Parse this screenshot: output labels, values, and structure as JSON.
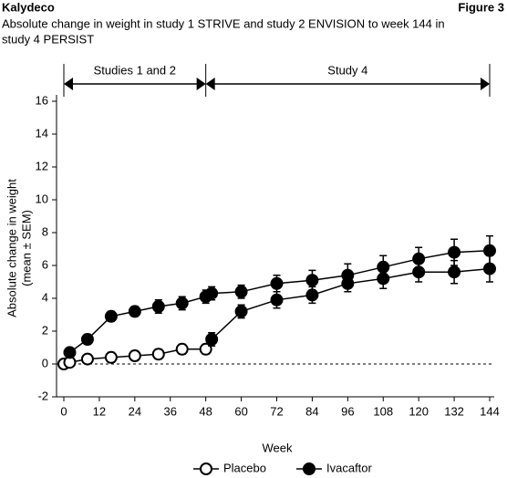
{
  "header": {
    "left": "Kalydeco",
    "right": "Figure 3"
  },
  "chart_data": {
    "type": "line",
    "title": [
      "Absolute change in weight in study 1 STRIVE and study 2 ENVISION to week 144 in",
      "study 4 PERSIST"
    ],
    "xlabel": "Week",
    "ylabel": [
      "Absolute change in weight",
      "(mean ± SEM)"
    ],
    "xlim": [
      0,
      144
    ],
    "ylim": [
      -2,
      16
    ],
    "xticks": [
      0,
      12,
      24,
      36,
      48,
      60,
      72,
      84,
      96,
      108,
      120,
      132,
      144
    ],
    "yticks": [
      -2,
      0,
      2,
      4,
      6,
      8,
      10,
      12,
      14,
      16
    ],
    "reference_line": 0,
    "periods": [
      {
        "label": "Studies 1 and 2",
        "start": 0,
        "end": 48
      },
      {
        "label": "Study 4",
        "start": 48,
        "end": 144
      }
    ],
    "series": [
      {
        "name": "Placebo",
        "color": "#000000",
        "marker_fill": "#ffffff",
        "x": [
          0,
          2,
          8,
          16,
          24,
          32,
          40,
          48
        ],
        "values": [
          0,
          0.1,
          0.3,
          0.4,
          0.5,
          0.6,
          0.9,
          0.9
        ],
        "errors": [
          0.1,
          0.2,
          0.2,
          0.3,
          0.3,
          0.3,
          0.3,
          0.3
        ]
      },
      {
        "name": "Ivacaftor",
        "color": "#000000",
        "marker_fill": "#000000",
        "x": [
          2,
          8,
          16,
          24,
          32,
          40,
          48,
          50,
          60,
          72,
          84,
          96,
          108,
          120,
          132,
          144,
          50,
          50,
          60,
          72,
          84,
          96,
          108,
          120,
          132,
          144
        ],
        "values": [
          0.7,
          1.5,
          2.9,
          3.2,
          3.5,
          3.7,
          4.1,
          4.3,
          4.4,
          4.9,
          5.1,
          5.4,
          5.9,
          6.4,
          6.8,
          6.9,
          null,
          1.5,
          3.2,
          3.9,
          4.2,
          4.9,
          5.2,
          5.6,
          5.6,
          5.8
        ],
        "errors": [
          0.2,
          0.3,
          0.3,
          0.3,
          0.4,
          0.4,
          0.4,
          0.4,
          0.4,
          0.5,
          0.6,
          0.7,
          0.7,
          0.7,
          0.8,
          0.9,
          null,
          0.4,
          0.4,
          0.5,
          0.5,
          0.5,
          0.6,
          0.6,
          0.7,
          0.8
        ]
      }
    ]
  }
}
